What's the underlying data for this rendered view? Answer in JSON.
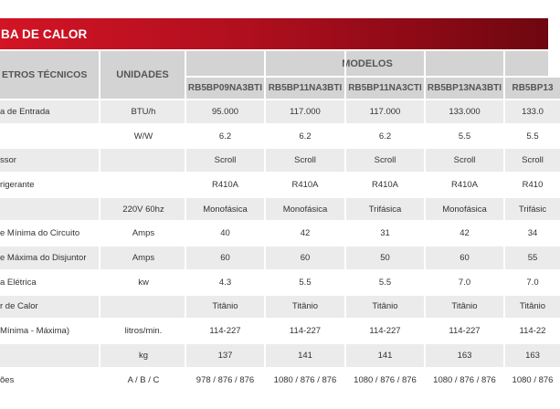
{
  "banner": {
    "title": "BA DE CALOR"
  },
  "header": {
    "param_label": "ETROS TÉCNICOS",
    "unit_label": "UNIDADES",
    "models_label": "MODELOS",
    "models": [
      "RB5BP09NA3BTI",
      "RB5BP11NA3BTI",
      "RB5BP11NA3CTI",
      "RB5BP13NA3BTI",
      "RB5BP13"
    ]
  },
  "rows": [
    {
      "param": "a de Entrada",
      "unit": "BTU/h",
      "values": [
        "95.000",
        "117.000",
        "117.000",
        "133.000",
        "133.0"
      ]
    },
    {
      "param": "",
      "unit": "W/W",
      "values": [
        "6.2",
        "6.2",
        "6.2",
        "5.5",
        "5.5"
      ]
    },
    {
      "param": "ssor",
      "unit": "",
      "values": [
        "Scroll",
        "Scroll",
        "Scroll",
        "Scroll",
        "Scroll"
      ]
    },
    {
      "param": "rigerante",
      "unit": "",
      "values": [
        "R410A",
        "R410A",
        "R410A",
        "R410A",
        "R410"
      ]
    },
    {
      "param": "",
      "unit": "220V 60hz",
      "values": [
        "Monofásica",
        "Monofásica",
        "Trifásica",
        "Monofásica",
        "Trifásic"
      ]
    },
    {
      "param": "e Mínima do Circuito",
      "unit": "Amps",
      "values": [
        "40",
        "42",
        "31",
        "42",
        "34"
      ]
    },
    {
      "param": "e Máxima do Disjuntor",
      "unit": "Amps",
      "values": [
        "60",
        "60",
        "50",
        "60",
        "55"
      ]
    },
    {
      "param": "a Elétrica",
      "unit": "kw",
      "values": [
        "4.3",
        "5.5",
        "5.5",
        "7.0",
        "7.0"
      ]
    },
    {
      "param": "r de Calor",
      "unit": "",
      "values": [
        "Titânio",
        "Titânio",
        "Titânio",
        "Titânio",
        "Titânio"
      ]
    },
    {
      "param": "Mínima - Máxima)",
      "unit": "litros/min.",
      "values": [
        "114-227",
        "114-227",
        "114-227",
        "114-227",
        "114-22"
      ]
    },
    {
      "param": "",
      "unit": "kg",
      "values": [
        "137",
        "141",
        "141",
        "163",
        "163"
      ]
    },
    {
      "param": "ões",
      "unit": "A / B / C",
      "values": [
        "978 / 876 / 876",
        "1080 / 876 / 876",
        "1080 / 876 / 876",
        "1080 / 876 / 876",
        "1080 / 876"
      ]
    }
  ]
}
